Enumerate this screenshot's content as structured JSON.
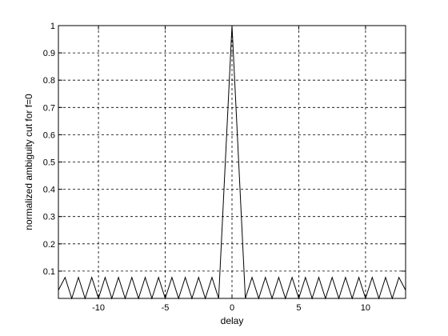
{
  "chart_data": {
    "type": "line",
    "title": "",
    "xlabel": "delay",
    "ylabel": "normalized ambiguity cut for f=0",
    "xlim": [
      -13,
      13
    ],
    "ylim": [
      0,
      1
    ],
    "x_ticks": [
      -10,
      -5,
      0,
      5,
      10
    ],
    "x_tick_labels": [
      "-10",
      "-5",
      "0",
      "5",
      "10"
    ],
    "y_ticks": [
      0.1,
      0.2,
      0.3,
      0.4,
      0.5,
      0.6,
      0.7,
      0.8,
      0.9,
      1
    ],
    "y_tick_labels": [
      "0.1",
      "0.2",
      "0.3",
      "0.4",
      "0.5",
      "0.6",
      "0.7",
      "0.8",
      "0.9",
      "1"
    ],
    "grid": true,
    "legend": "none",
    "line_color": "#000000",
    "series": [
      {
        "x": [
          -13,
          -12.5,
          -12,
          -11.5,
          -11,
          -10.5,
          -10,
          -9.5,
          -9,
          -8.5,
          -8,
          -7.5,
          -7,
          -6.5,
          -6,
          -5.5,
          -5,
          -4.5,
          -4,
          -3.5,
          -3,
          -2.5,
          -2,
          -1.5,
          -1,
          -0.5,
          0,
          0.5,
          1,
          1.5,
          2,
          2.5,
          3,
          3.5,
          4,
          4.5,
          5,
          5.5,
          6,
          6.5,
          7,
          7.5,
          8,
          8.5,
          9,
          9.5,
          10,
          10.5,
          11,
          11.5,
          12,
          12.5,
          13
        ],
        "values": [
          0.03,
          0.077,
          0.0,
          0.077,
          0.0,
          0.077,
          0.0,
          0.077,
          0.0,
          0.077,
          0.0,
          0.077,
          0.0,
          0.077,
          0.0,
          0.077,
          0.0,
          0.077,
          0.0,
          0.077,
          0.0,
          0.077,
          0.0,
          0.077,
          0.0,
          0.5,
          1.0,
          0.5,
          0.0,
          0.077,
          0.0,
          0.077,
          0.0,
          0.077,
          0.0,
          0.077,
          0.0,
          0.077,
          0.0,
          0.077,
          0.0,
          0.077,
          0.0,
          0.077,
          0.0,
          0.077,
          0.0,
          0.077,
          0.0,
          0.077,
          0.0,
          0.077,
          0.03
        ]
      }
    ]
  }
}
